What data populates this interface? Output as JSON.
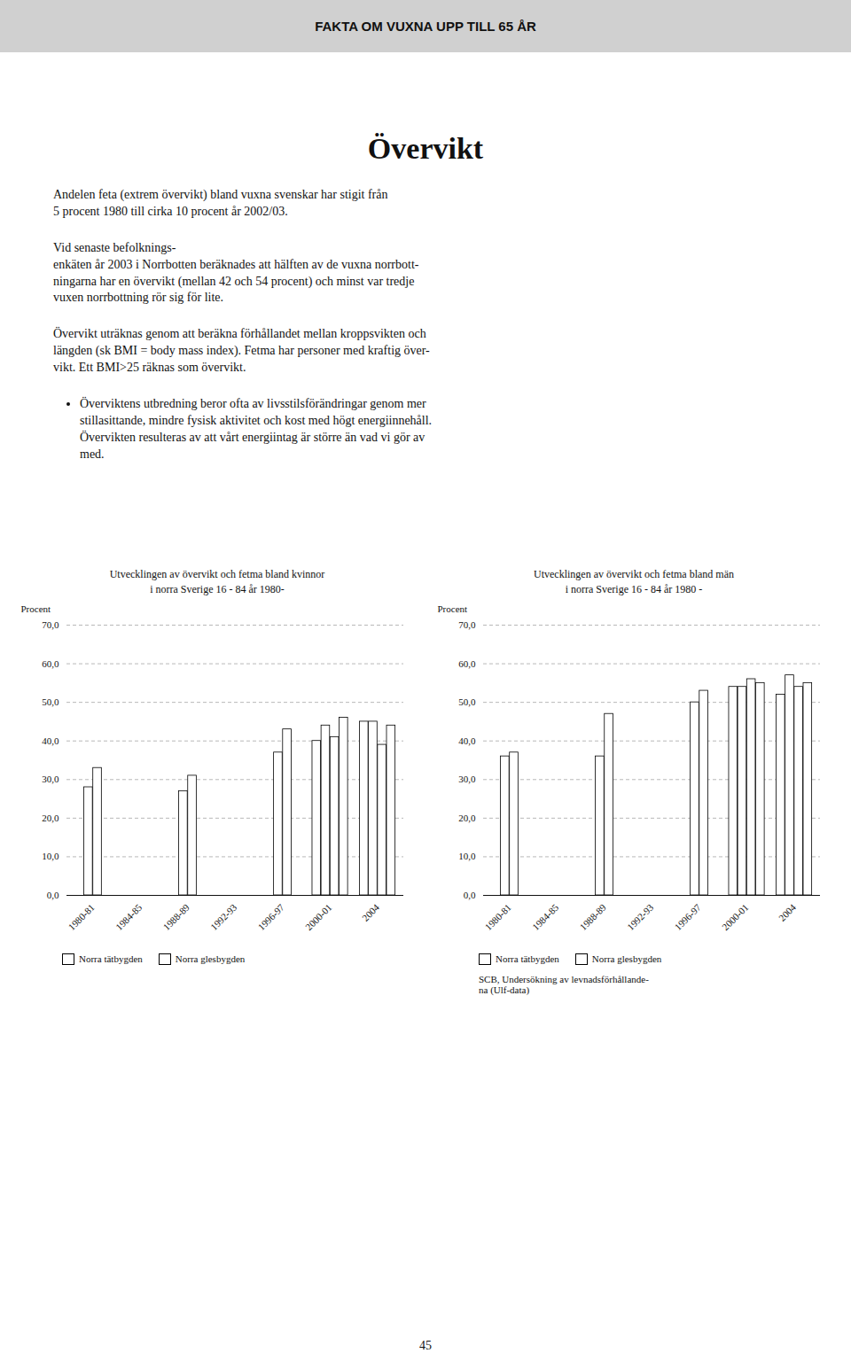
{
  "header": "FAKTA OM VUXNA UPP TILL 65 ÅR",
  "title": "Övervikt",
  "paragraphs": [
    "Andelen feta (extrem övervikt) bland vuxna svenskar har stigit från\n5 procent 1980 till cirka 10 procent år 2002/03.",
    "Vid senaste befolknings-\nenkäten år 2003 i Norrbotten beräknades att hälften av de vuxna norrbott-\nningarna har en övervikt (mellan 42 och 54 procent) och minst var tredje\nvuxen norrbottning rör sig för lite.",
    "Övervikt uträknas genom att beräkna förhållandet mellan kroppsvikten och\nlängden (sk BMI = body mass index). Fetma har personer med kraftig över-\nvikt. Ett BMI>25 räknas som övervikt."
  ],
  "bullets": [
    "Överviktens utbredning beror ofta av livsstilsförändringar genom mer\nstillasittande, mindre fysisk aktivitet och kost med högt energiinnehåll.\nÖvervikten resulteras av att vårt energiintag är större än vad vi gör av\nmed."
  ],
  "page_number": "45",
  "chart_data": [
    {
      "type": "bar",
      "title": "Utvecklingen av övervikt och fetma bland kvinnor\ni norra Sverige 16 - 84 år 1980-",
      "ylabel": "Procent",
      "categories": [
        "1980-81",
        "1984-85",
        "1988-89",
        "1992-93",
        "1996-97",
        "2000-01",
        "2004"
      ],
      "values": [
        [
          28.0,
          33.0
        ],
        [],
        [
          27.0,
          31.0
        ],
        [],
        [
          37.0,
          43.0
        ],
        [
          40.0,
          44.0,
          41.0,
          46.0
        ],
        [
          45.0,
          45.0,
          39.0,
          44.0
        ]
      ],
      "color": "#ffffff",
      "series": [
        {
          "name": "Norra tätbygden",
          "color": "#ffffff"
        },
        {
          "name": "Norra glesbygden",
          "color": "#ffffff"
        }
      ],
      "ylim": [
        0,
        70
      ],
      "yticks": [
        {
          "value": 0,
          "label": "0,0"
        },
        {
          "value": 10,
          "label": "10,0"
        },
        {
          "value": 20,
          "label": "20,0"
        },
        {
          "value": 30,
          "label": "30,0"
        },
        {
          "value": 40,
          "label": "40,0"
        },
        {
          "value": 50,
          "label": "50,0"
        },
        {
          "value": 60,
          "label": "60,0"
        },
        {
          "value": 70,
          "label": "70,0"
        }
      ],
      "grid": true,
      "legend": "lower left"
    },
    {
      "type": "bar",
      "title": "Utvecklingen av övervikt och fetma bland män\ni norra Sverige 16 - 84 år 1980 -",
      "ylabel": "Procent",
      "categories": [
        "1980-81",
        "1984-85",
        "1988-89",
        "1992-93",
        "1996-97",
        "2000-01",
        "2004"
      ],
      "values": [
        [
          36.0,
          37.0
        ],
        [],
        [
          36.0,
          47.0
        ],
        [],
        [
          50.0,
          53.0
        ],
        [
          54.0,
          54.0,
          56.0,
          55.0
        ],
        [
          52.0,
          57.0,
          54.0,
          55.0
        ]
      ],
      "color": "#ffffff",
      "series": [
        {
          "name": "Norra tätbygden",
          "color": "#ffffff"
        },
        {
          "name": "Norra glesbygden",
          "color": "#ffffff"
        }
      ],
      "ylim": [
        0,
        70
      ],
      "yticks": [
        {
          "value": 0,
          "label": "0,0"
        },
        {
          "value": 10,
          "label": "10,0"
        },
        {
          "value": 20,
          "label": "20,0"
        },
        {
          "value": 30,
          "label": "30,0"
        },
        {
          "value": 40,
          "label": "40,0"
        },
        {
          "value": 50,
          "label": "50,0"
        },
        {
          "value": 60,
          "label": "60,0"
        },
        {
          "value": 70,
          "label": "70,0"
        }
      ],
      "grid": true,
      "legend": "lower left",
      "source": "SCB, Undersökning av levnadsförhållande-\nna (Ulf-data)"
    }
  ]
}
